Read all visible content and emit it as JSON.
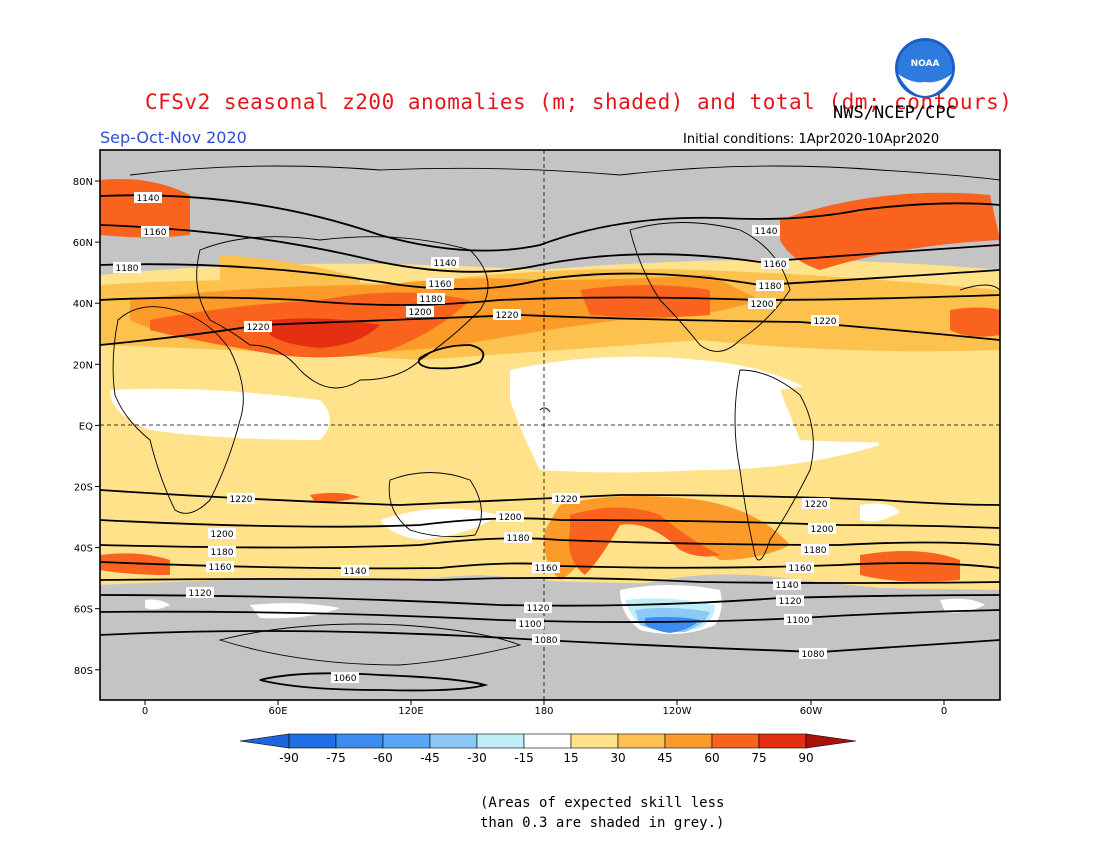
{
  "title": "CFSv2 seasonal z200 anomalies (m; shaded) and total (dm; contours)",
  "agency": "NWS/NCEP/CPC",
  "logo_text": "NOAA",
  "season": "Sep-Oct-Nov 2020",
  "initial_conditions": "Initial conditions: 1Apr2020-10Apr2020",
  "lat_labels": [
    "80N",
    "60N",
    "40N",
    "20N",
    "EQ",
    "20S",
    "40S",
    "60S",
    "80S"
  ],
  "lon_labels": [
    "0",
    "60E",
    "120E",
    "180",
    "120W",
    "60W",
    "0"
  ],
  "colorbar": {
    "labels": [
      "-90",
      "-75",
      "-60",
      "-45",
      "-30",
      "-15",
      "15",
      "30",
      "45",
      "60",
      "75",
      "90"
    ],
    "colors": [
      "#1e6fe6",
      "#3c8cf0",
      "#5aa5f5",
      "#8cc8f8",
      "#bfeef8",
      "#ffffff",
      "#ffe28a",
      "#fdc14e",
      "#fc9a2a",
      "#f9631e",
      "#e52e12"
    ],
    "end_low": "#1e64dc",
    "end_high": "#a8120a"
  },
  "colors": {
    "land_mask": "#c4c4c4",
    "title": "#e8141c",
    "season": "#2b4fd8"
  },
  "contours": {
    "labels": [
      "1140",
      "1160",
      "1180",
      "1220",
      "1140",
      "1160",
      "1180",
      "1200",
      "1220",
      "1140",
      "1160",
      "1180",
      "1200",
      "1220",
      "1220",
      "1200",
      "1180",
      "1160",
      "1140",
      "1120",
      "1220",
      "1200",
      "1180",
      "1160",
      "1120",
      "1100",
      "1080",
      "1220",
      "1200",
      "1180",
      "1160",
      "1140",
      "1120",
      "1100",
      "1080",
      "1060"
    ]
  },
  "note": [
    "(Areas of expected skill less",
    "than 0.3 are shaded in grey.)"
  ]
}
